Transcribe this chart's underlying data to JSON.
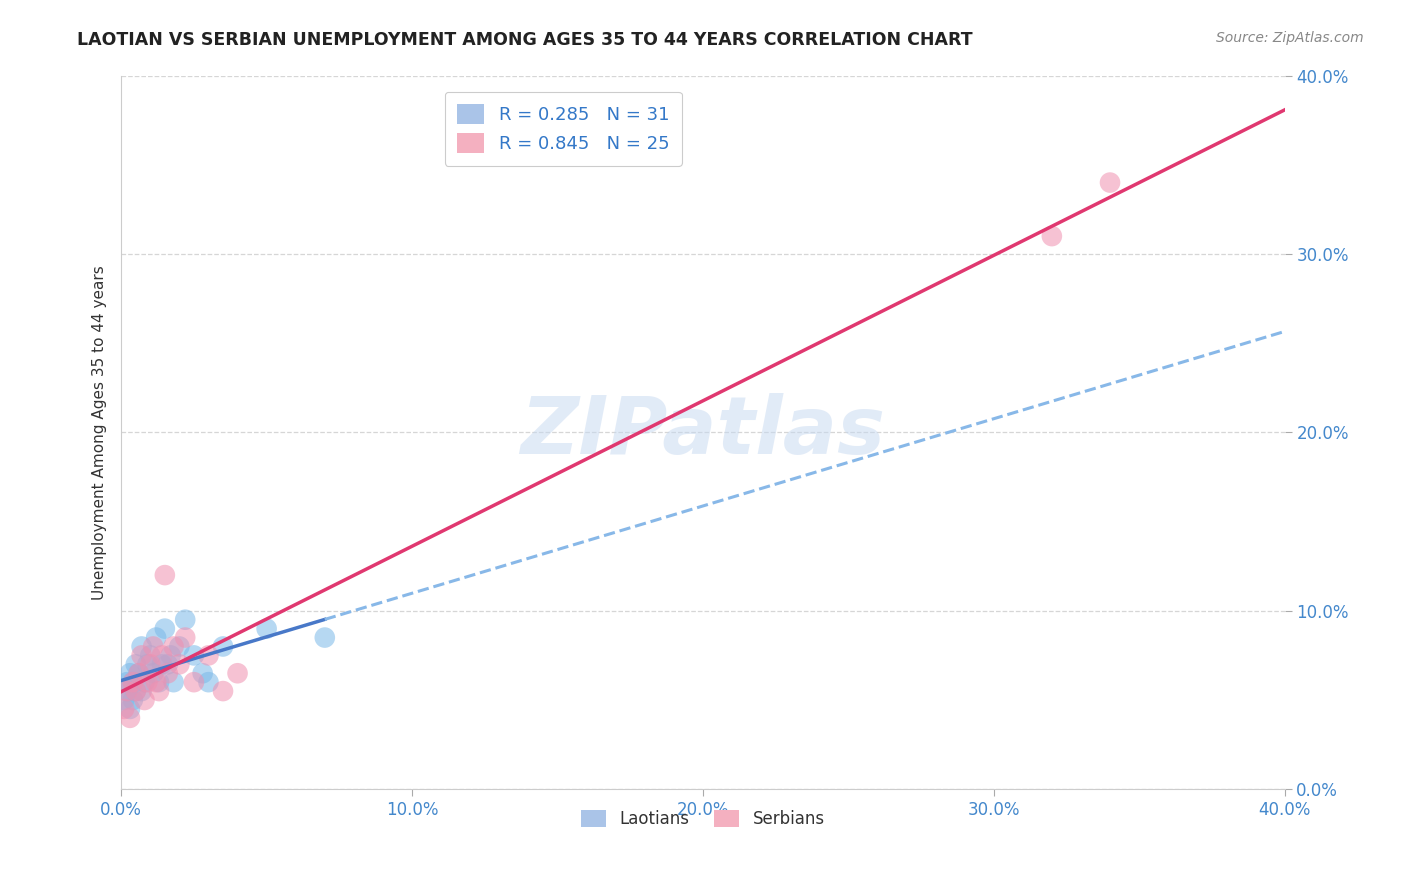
{
  "title": "LAOTIAN VS SERBIAN UNEMPLOYMENT AMONG AGES 35 TO 44 YEARS CORRELATION CHART",
  "source": "Source: ZipAtlas.com",
  "tick_vals": [
    0.0,
    0.1,
    0.2,
    0.3,
    0.4
  ],
  "tick_labels": [
    "0.0%",
    "10.0%",
    "20.0%",
    "30.0%",
    "40.0%"
  ],
  "ylabel": "Unemployment Among Ages 35 to 44 years",
  "laotian_color": "#7ab8e8",
  "serbian_color": "#f090b0",
  "laotian_line_color": "#4878c8",
  "serbian_line_color": "#e03870",
  "laotian_dashed_color": "#88b8e8",
  "watermark_text": "ZIPatlas",
  "laotian_x": [
    0.001,
    0.002,
    0.002,
    0.003,
    0.003,
    0.004,
    0.004,
    0.005,
    0.005,
    0.006,
    0.007,
    0.007,
    0.008,
    0.009,
    0.01,
    0.011,
    0.012,
    0.013,
    0.014,
    0.015,
    0.016,
    0.017,
    0.018,
    0.02,
    0.022,
    0.025,
    0.028,
    0.03,
    0.035,
    0.05,
    0.07
  ],
  "laotian_y": [
    0.05,
    0.055,
    0.06,
    0.065,
    0.045,
    0.06,
    0.05,
    0.07,
    0.055,
    0.065,
    0.08,
    0.055,
    0.06,
    0.07,
    0.075,
    0.065,
    0.085,
    0.06,
    0.07,
    0.09,
    0.07,
    0.075,
    0.06,
    0.08,
    0.095,
    0.075,
    0.065,
    0.06,
    0.08,
    0.09,
    0.085
  ],
  "serbian_x": [
    0.001,
    0.002,
    0.003,
    0.004,
    0.005,
    0.006,
    0.007,
    0.008,
    0.009,
    0.01,
    0.011,
    0.012,
    0.013,
    0.014,
    0.015,
    0.016,
    0.018,
    0.02,
    0.022,
    0.025,
    0.03,
    0.035,
    0.04,
    0.32,
    0.34
  ],
  "serbian_y": [
    0.045,
    0.055,
    0.04,
    0.06,
    0.055,
    0.065,
    0.075,
    0.05,
    0.06,
    0.07,
    0.08,
    0.06,
    0.055,
    0.075,
    0.12,
    0.065,
    0.08,
    0.07,
    0.085,
    0.06,
    0.075,
    0.055,
    0.065,
    0.31,
    0.34
  ],
  "xlim": [
    0.0,
    0.4
  ],
  "ylim": [
    0.0,
    0.4
  ],
  "background_color": "#ffffff",
  "grid_color": "#cccccc",
  "tick_color": "#4488cc",
  "title_color": "#222222",
  "source_color": "#888888",
  "ylabel_color": "#333333"
}
